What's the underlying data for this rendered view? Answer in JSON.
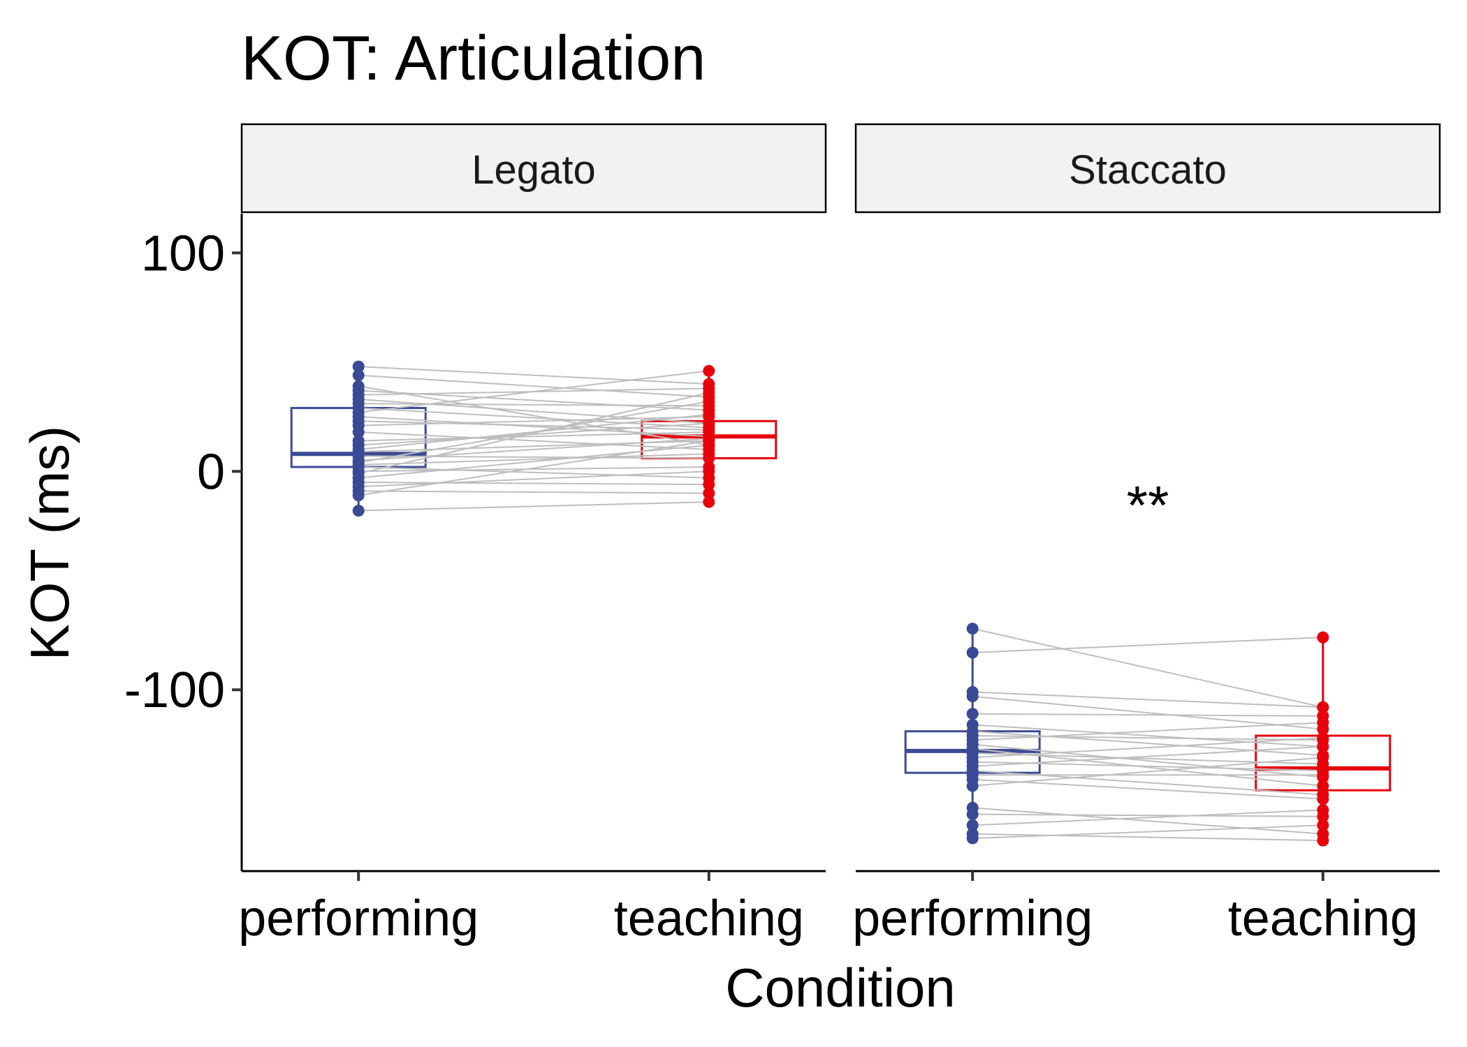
{
  "chart_data": {
    "type": "box",
    "title": "KOT: Articulation",
    "xlabel": "Condition",
    "ylabel": "KOT (ms)",
    "ylim": [
      -183,
      118
    ],
    "yticks": [
      -100,
      0,
      100
    ],
    "categories": [
      "performing",
      "teaching"
    ],
    "colors": {
      "performing": "#3B4A94",
      "teaching": "#E8000B",
      "line": "#BEBEBE"
    },
    "panels": [
      {
        "name": "Legato",
        "annotation": "",
        "boxes": [
          {
            "category": "performing",
            "q1": 2,
            "median": 8,
            "q3": 29,
            "whisker_low": -18,
            "whisker_high": 48
          },
          {
            "category": "teaching",
            "q1": 6,
            "median": 16,
            "q3": 23,
            "whisker_low": -14,
            "whisker_high": 46
          }
        ],
        "pairs": [
          [
            48,
            40
          ],
          [
            44,
            34
          ],
          [
            39,
            12
          ],
          [
            37,
            28
          ],
          [
            35,
            38
          ],
          [
            33,
            22
          ],
          [
            31,
            30
          ],
          [
            29,
            20
          ],
          [
            27,
            46
          ],
          [
            25,
            16
          ],
          [
            23,
            19
          ],
          [
            21,
            25
          ],
          [
            18,
            10
          ],
          [
            14,
            18
          ],
          [
            12,
            22
          ],
          [
            10,
            26
          ],
          [
            9,
            14
          ],
          [
            7,
            6
          ],
          [
            5,
            15
          ],
          [
            4,
            32
          ],
          [
            3,
            8
          ],
          [
            2,
            -3
          ],
          [
            0,
            2
          ],
          [
            -1,
            36
          ],
          [
            -3,
            12
          ],
          [
            -5,
            -6
          ],
          [
            -7,
            0
          ],
          [
            -9,
            -10
          ],
          [
            -11,
            14
          ],
          [
            -18,
            -14
          ]
        ]
      },
      {
        "name": "Staccato",
        "annotation": "**",
        "boxes": [
          {
            "category": "performing",
            "q1": -138,
            "median": -128,
            "q3": -119,
            "whisker_low": -167,
            "whisker_high": -72
          },
          {
            "category": "teaching",
            "q1": -146,
            "median": -136,
            "q3": -121,
            "whisker_low": -169,
            "whisker_high": -76
          }
        ],
        "pairs": [
          [
            -72,
            -108
          ],
          [
            -83,
            -76
          ],
          [
            -101,
            -108
          ],
          [
            -103,
            -118
          ],
          [
            -111,
            -112
          ],
          [
            -116,
            -126
          ],
          [
            -119,
            -130
          ],
          [
            -121,
            -123
          ],
          [
            -123,
            -115
          ],
          [
            -125,
            -140
          ],
          [
            -127,
            -144
          ],
          [
            -129,
            -134
          ],
          [
            -131,
            -122
          ],
          [
            -133,
            -137
          ],
          [
            -135,
            -126
          ],
          [
            -137,
            -148
          ],
          [
            -139,
            -139
          ],
          [
            -141,
            -150
          ],
          [
            -144,
            -131
          ],
          [
            -154,
            -166
          ],
          [
            -157,
            -158
          ],
          [
            -162,
            -155
          ],
          [
            -166,
            -169
          ],
          [
            -168,
            -162
          ]
        ]
      }
    ]
  }
}
